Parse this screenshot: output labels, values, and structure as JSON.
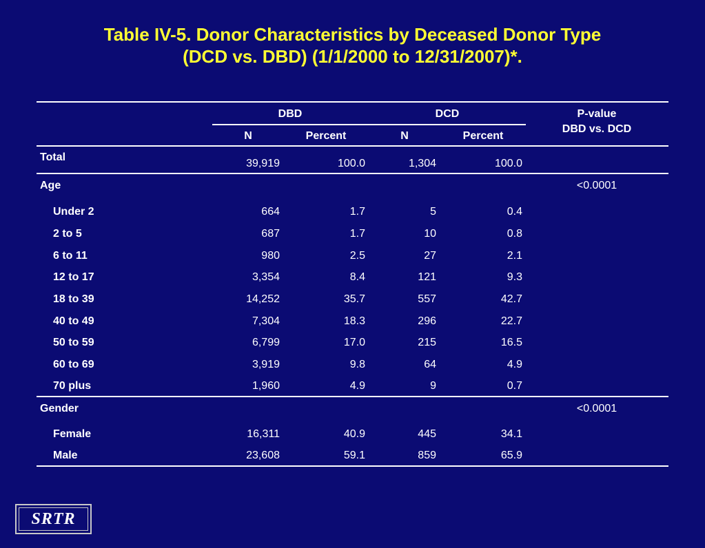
{
  "title": {
    "line1": "Table IV-5. Donor Characteristics by Deceased Donor Type",
    "line2": "(DCD vs. DBD) (1/1/2000 to 12/31/2007)*."
  },
  "headers": {
    "dbd": "DBD",
    "dcd": "DCD",
    "n": "N",
    "percent": "Percent",
    "pvalue_line1": "P-value",
    "pvalue_line2": "DBD vs. DCD"
  },
  "total": {
    "label": "Total",
    "dbd_n": "39,919",
    "dbd_pct": "100.0",
    "dcd_n": "1,304",
    "dcd_pct": "100.0"
  },
  "sections": {
    "age": {
      "label": "Age",
      "pvalue": "<0.0001",
      "rows": [
        {
          "label": "Under 2",
          "dbd_n": "664",
          "dbd_pct": "1.7",
          "dcd_n": "5",
          "dcd_pct": "0.4"
        },
        {
          "label": "2 to 5",
          "dbd_n": "687",
          "dbd_pct": "1.7",
          "dcd_n": "10",
          "dcd_pct": "0.8"
        },
        {
          "label": "6 to 11",
          "dbd_n": "980",
          "dbd_pct": "2.5",
          "dcd_n": "27",
          "dcd_pct": "2.1"
        },
        {
          "label": "12 to 17",
          "dbd_n": "3,354",
          "dbd_pct": "8.4",
          "dcd_n": "121",
          "dcd_pct": "9.3"
        },
        {
          "label": "18 to 39",
          "dbd_n": "14,252",
          "dbd_pct": "35.7",
          "dcd_n": "557",
          "dcd_pct": "42.7"
        },
        {
          "label": "40 to 49",
          "dbd_n": "7,304",
          "dbd_pct": "18.3",
          "dcd_n": "296",
          "dcd_pct": "22.7"
        },
        {
          "label": "50 to 59",
          "dbd_n": "6,799",
          "dbd_pct": "17.0",
          "dcd_n": "215",
          "dcd_pct": "16.5"
        },
        {
          "label": "60 to 69",
          "dbd_n": "3,919",
          "dbd_pct": "9.8",
          "dcd_n": "64",
          "dcd_pct": "4.9"
        },
        {
          "label": "70 plus",
          "dbd_n": "1,960",
          "dbd_pct": "4.9",
          "dcd_n": "9",
          "dcd_pct": "0.7"
        }
      ]
    },
    "gender": {
      "label": "Gender",
      "pvalue": "<0.0001",
      "rows": [
        {
          "label": "Female",
          "dbd_n": "16,311",
          "dbd_pct": "40.9",
          "dcd_n": "445",
          "dcd_pct": "34.1"
        },
        {
          "label": "Male",
          "dbd_n": "23,608",
          "dbd_pct": "59.1",
          "dcd_n": "859",
          "dcd_pct": "65.9"
        }
      ]
    }
  },
  "logo": {
    "text": "SRTR"
  },
  "colors": {
    "background": "#0b0b73",
    "title": "#ffff33",
    "text": "#ffffff"
  }
}
